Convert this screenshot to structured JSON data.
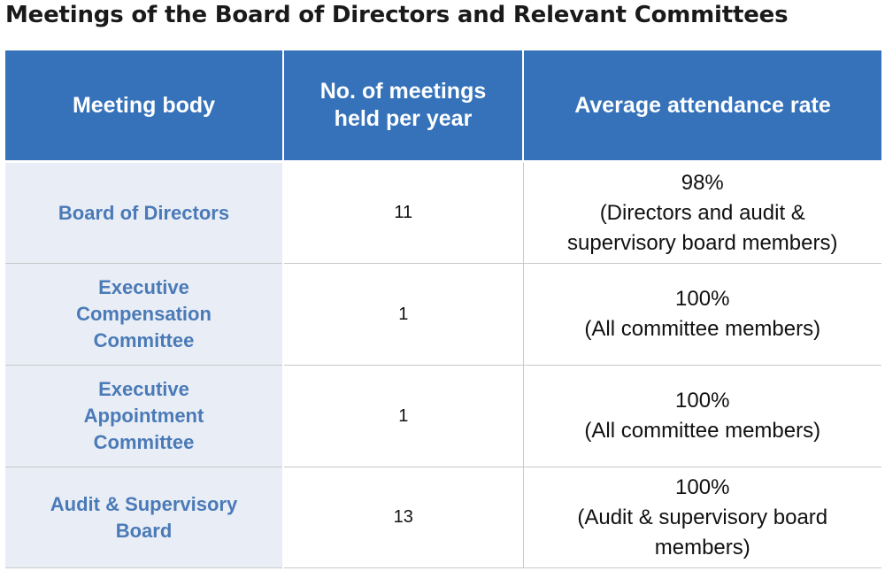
{
  "title": "Meetings of the Board of Directors and Relevant Committees",
  "table": {
    "headers": [
      [
        "Meeting body"
      ],
      [
        "No. of meetings",
        "held per year"
      ],
      [
        "Average attendance rate"
      ]
    ],
    "rows": [
      {
        "body": [
          "Board of Directors"
        ],
        "meetings": "11",
        "rate": [
          "98%",
          "(Directors and audit &",
          "supervisory board members)"
        ]
      },
      {
        "body": [
          "Executive",
          "Compensation",
          "Committee"
        ],
        "meetings": "1",
        "rate": [
          "100%",
          "(All committee members)"
        ]
      },
      {
        "body": [
          "Executive",
          "Appointment",
          "Committee"
        ],
        "meetings": "1",
        "rate": [
          "100%",
          "(All committee members)"
        ]
      },
      {
        "body": [
          "Audit & Supervisory",
          "Board"
        ],
        "meetings": "13",
        "rate": [
          "100%",
          "(Audit & supervisory board",
          "members)"
        ]
      }
    ]
  }
}
